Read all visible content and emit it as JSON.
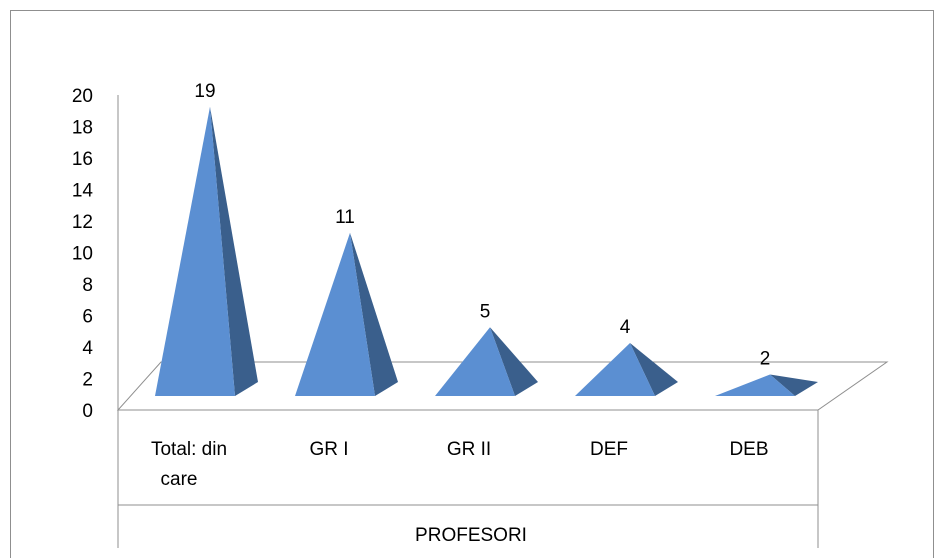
{
  "chart_data": {
    "type": "bar",
    "style": "3d-pyramid",
    "categories": [
      [
        "Total:   din",
        "care"
      ],
      [
        "GR I"
      ],
      [
        "GR II"
      ],
      [
        "DEF"
      ],
      [
        "DEB"
      ]
    ],
    "values": [
      19,
      11,
      5,
      4,
      2
    ],
    "data_labels": [
      "19",
      "11",
      "5",
      "4",
      "2"
    ],
    "xlabel": "PROFESORI",
    "ylabel": "",
    "title": "",
    "ylim": [
      0,
      20
    ],
    "yticks": [
      "0",
      "2",
      "4",
      "6",
      "8",
      "10",
      "12",
      "14",
      "16",
      "18",
      "20"
    ],
    "grid": false,
    "legend": "none",
    "colors": {
      "front_face": "#5b8fd2",
      "right_face": "#3a5f8c",
      "floor_stroke": "#8f8f8f",
      "axis": "#8f8f8f"
    }
  }
}
